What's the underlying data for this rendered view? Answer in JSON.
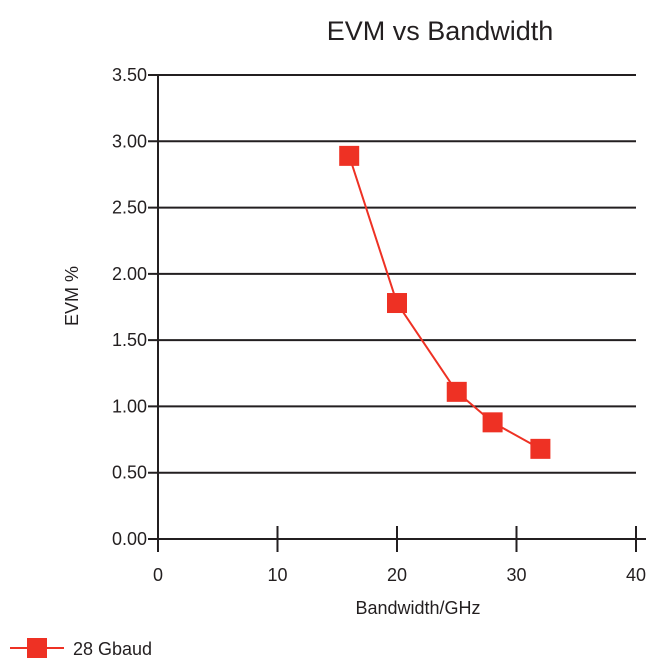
{
  "chart_data": {
    "type": "line",
    "title": "EVM vs Bandwidth",
    "xlabel": "Bandwidth/GHz",
    "ylabel": "EVM %",
    "xlim": [
      0,
      40
    ],
    "ylim": [
      0,
      3.5
    ],
    "xticks": [
      0,
      10,
      20,
      30,
      40
    ],
    "xtick_labels": [
      "0",
      "10",
      "20",
      "30",
      "40"
    ],
    "yticks": [
      0,
      0.5,
      1.0,
      1.5,
      2.0,
      2.5,
      3.0,
      3.5
    ],
    "ytick_labels": [
      "0.00",
      "0.50",
      "1.00",
      "1.50",
      "2.00",
      "2.50",
      "3.00",
      "3.50"
    ],
    "grid": "horizontal",
    "legend_position": "bottom-left",
    "series": [
      {
        "name": "28 Gbaud",
        "color": "#ee3124",
        "marker": "square",
        "x": [
          16,
          20,
          25,
          28,
          32
        ],
        "y": [
          2.89,
          1.78,
          1.11,
          0.88,
          0.68
        ]
      }
    ]
  }
}
